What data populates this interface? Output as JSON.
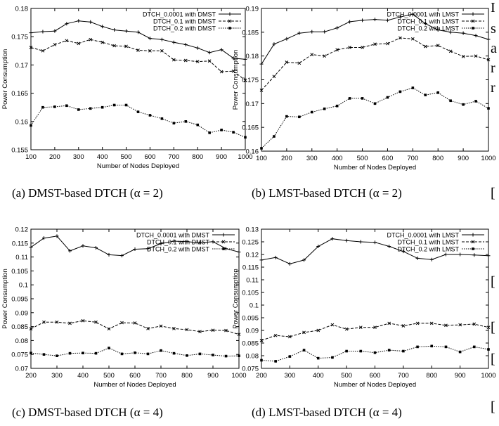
{
  "chart_data": [
    {
      "type": "line",
      "caption": "(a) DMST-based DTCH (α = 2)",
      "xlabel": "Number of Nodes Deployed",
      "ylabel": "Power Consumption",
      "xlim": [
        100,
        1000
      ],
      "ylim": [
        0.155,
        0.18
      ],
      "xticks": [
        100,
        200,
        300,
        400,
        500,
        600,
        700,
        800,
        900,
        1000
      ],
      "yticks": [
        0.155,
        0.16,
        0.165,
        0.17,
        0.175,
        0.18
      ],
      "ytick_labels": [
        "0.155",
        "0.16",
        "0.165",
        "0.17",
        "0.175",
        "0.18"
      ],
      "legend": "top-right",
      "x": [
        100,
        150,
        200,
        250,
        300,
        350,
        400,
        450,
        500,
        550,
        600,
        650,
        700,
        750,
        800,
        850,
        900,
        950,
        1000
      ],
      "series": [
        {
          "name": "DTCH_0.0001 with DMST",
          "marker": "plus",
          "dash": "solid",
          "values": [
            0.1757,
            0.1759,
            0.176,
            0.1773,
            0.1778,
            0.1776,
            0.1768,
            0.1762,
            0.176,
            0.1758,
            0.1747,
            0.1745,
            0.174,
            0.1736,
            0.173,
            0.1722,
            0.1727,
            0.1712,
            0.171
          ]
        },
        {
          "name": "DTCH_0.1 with DMST",
          "marker": "x",
          "dash": "dash",
          "values": [
            0.1731,
            0.1725,
            0.1736,
            0.1743,
            0.1738,
            0.1745,
            0.174,
            0.1734,
            0.1733,
            0.1726,
            0.1725,
            0.1725,
            0.1709,
            0.1708,
            0.1706,
            0.1707,
            0.1688,
            0.1689,
            0.1673
          ]
        },
        {
          "name": "DTCH_0.2 with DMST",
          "marker": "square",
          "dash": "dot",
          "values": [
            0.1593,
            0.1625,
            0.1626,
            0.1628,
            0.1621,
            0.1623,
            0.1625,
            0.1629,
            0.1629,
            0.1617,
            0.1611,
            0.1605,
            0.1597,
            0.16,
            0.1594,
            0.158,
            0.1585,
            0.1581,
            0.1572
          ]
        }
      ]
    },
    {
      "type": "line",
      "caption": "(b) LMST-based DTCH (α = 2)",
      "xlabel": "Number of Nodes Deployed",
      "ylabel": "Power Consumption",
      "xlim": [
        100,
        1000
      ],
      "ylim": [
        0.16,
        0.19
      ],
      "xticks": [
        100,
        200,
        300,
        400,
        500,
        600,
        700,
        800,
        900,
        1000
      ],
      "yticks": [
        0.16,
        0.165,
        0.17,
        0.175,
        0.18,
        0.185,
        0.19
      ],
      "ytick_labels": [
        "0.16",
        "0.165",
        "0.17",
        "0.175",
        "0.18",
        "0.185",
        "0.19"
      ],
      "legend": "top-right",
      "x": [
        100,
        150,
        200,
        250,
        300,
        350,
        400,
        450,
        500,
        550,
        600,
        650,
        700,
        750,
        800,
        850,
        900,
        950,
        1000
      ],
      "series": [
        {
          "name": "DTCH_0.0001 with LMST",
          "marker": "plus",
          "dash": "solid",
          "values": [
            0.1783,
            0.1825,
            0.1836,
            0.1848,
            0.1851,
            0.1851,
            0.1859,
            0.1872,
            0.1875,
            0.1877,
            0.1875,
            0.1882,
            0.1888,
            0.1868,
            0.1855,
            0.185,
            0.1848,
            0.1843,
            0.1835
          ]
        },
        {
          "name": "DTCH_0.1 with LMST",
          "marker": "x",
          "dash": "dash",
          "values": [
            0.1728,
            0.1757,
            0.1787,
            0.1785,
            0.1803,
            0.18,
            0.1813,
            0.1818,
            0.1818,
            0.1825,
            0.1826,
            0.1838,
            0.1836,
            0.182,
            0.1822,
            0.181,
            0.1799,
            0.18,
            0.1792
          ]
        },
        {
          "name": "DTCH_0.2 with LMST",
          "marker": "square",
          "dash": "dot",
          "values": [
            0.1606,
            0.1631,
            0.1673,
            0.1672,
            0.1682,
            0.1689,
            0.1695,
            0.1711,
            0.1711,
            0.17,
            0.1713,
            0.1725,
            0.1733,
            0.1718,
            0.1723,
            0.1706,
            0.1698,
            0.1705,
            0.169
          ]
        }
      ]
    },
    {
      "type": "line",
      "caption": "(c) DMST-based DTCH (α = 4)",
      "xlabel": "Number of Nodes Deployed",
      "ylabel": "Power Consumption",
      "xlim": [
        200,
        1000
      ],
      "ylim": [
        0.07,
        0.12
      ],
      "xticks": [
        200,
        300,
        400,
        500,
        600,
        700,
        800,
        900,
        1000
      ],
      "yticks": [
        0.07,
        0.075,
        0.08,
        0.085,
        0.09,
        0.095,
        0.1,
        0.105,
        0.11,
        0.115,
        0.12
      ],
      "ytick_labels": [
        "0.07",
        "0.075",
        "0.08",
        "0.085",
        "0.09",
        "0.095",
        "0.1",
        "0.105",
        "0.11",
        "0.115",
        "0.12"
      ],
      "legend": "top-right",
      "x": [
        200,
        250,
        300,
        350,
        400,
        450,
        500,
        550,
        600,
        650,
        700,
        750,
        800,
        850,
        900,
        950,
        1000
      ],
      "series": [
        {
          "name": "DTCH_0.0001 with DMST",
          "marker": "plus",
          "dash": "solid",
          "values": [
            0.1135,
            0.1168,
            0.1175,
            0.1122,
            0.114,
            0.1133,
            0.1108,
            0.1105,
            0.1128,
            0.113,
            0.1148,
            0.1157,
            0.1155,
            0.1151,
            0.1155,
            0.113,
            0.1118
          ]
        },
        {
          "name": "DTCH_0.1 with DMST",
          "marker": "x",
          "dash": "dash",
          "values": [
            0.0842,
            0.0866,
            0.0866,
            0.0862,
            0.0871,
            0.0866,
            0.0842,
            0.0864,
            0.0863,
            0.0843,
            0.0852,
            0.0843,
            0.0839,
            0.0832,
            0.0837,
            0.0836,
            0.0822
          ]
        },
        {
          "name": "DTCH_0.2 with DMST",
          "marker": "square",
          "dash": "dot",
          "values": [
            0.0755,
            0.075,
            0.0745,
            0.0754,
            0.0755,
            0.0754,
            0.0773,
            0.0752,
            0.0756,
            0.0752,
            0.0764,
            0.0754,
            0.0746,
            0.0752,
            0.0748,
            0.0744,
            0.0745
          ]
        }
      ]
    },
    {
      "type": "line",
      "caption": "(d) LMST-based DTCH (α = 4)",
      "xlabel": "Number of Nodes Deployed",
      "ylabel": "Power Consumption",
      "xlim": [
        200,
        1000
      ],
      "ylim": [
        0.075,
        0.13
      ],
      "xticks": [
        200,
        300,
        400,
        500,
        600,
        700,
        800,
        900,
        1000
      ],
      "yticks": [
        0.075,
        0.08,
        0.085,
        0.09,
        0.095,
        0.1,
        0.105,
        0.11,
        0.115,
        0.12,
        0.125,
        0.13
      ],
      "ytick_labels": [
        "0.075",
        "0.08",
        "0.085",
        "0.09",
        "0.095",
        "0.1",
        "0.105",
        "0.11",
        "0.115",
        "0.12",
        "0.125",
        "0.13"
      ],
      "legend": "top-right",
      "x": [
        200,
        250,
        300,
        350,
        400,
        450,
        500,
        550,
        600,
        650,
        700,
        750,
        800,
        850,
        900,
        950,
        1000
      ],
      "series": [
        {
          "name": "DTCH_0.0001 with LMST",
          "marker": "plus",
          "dash": "solid",
          "values": [
            0.1178,
            0.1188,
            0.1163,
            0.1178,
            0.1232,
            0.1262,
            0.1255,
            0.125,
            0.1248,
            0.1232,
            0.1212,
            0.1185,
            0.118,
            0.12,
            0.12,
            0.1198,
            0.1195
          ]
        },
        {
          "name": "DTCH_0.1 with LMST",
          "marker": "x",
          "dash": "dash",
          "values": [
            0.086,
            0.088,
            0.0875,
            0.0892,
            0.09,
            0.0922,
            0.0905,
            0.0912,
            0.0912,
            0.0928,
            0.0918,
            0.0928,
            0.0928,
            0.092,
            0.0922,
            0.0925,
            0.0912
          ]
        },
        {
          "name": "DTCH_0.2 with LMST",
          "marker": "square",
          "dash": "dot",
          "values": [
            0.0782,
            0.0778,
            0.0797,
            0.0822,
            0.079,
            0.0793,
            0.0818,
            0.0818,
            0.0812,
            0.0822,
            0.0818,
            0.0835,
            0.0838,
            0.0835,
            0.0815,
            0.0835,
            0.0825
          ]
        }
      ]
    }
  ],
  "side_text": [
    "I",
    "s",
    "a",
    "r",
    "r",
    "[",
    "[",
    "[",
    "[",
    "["
  ]
}
